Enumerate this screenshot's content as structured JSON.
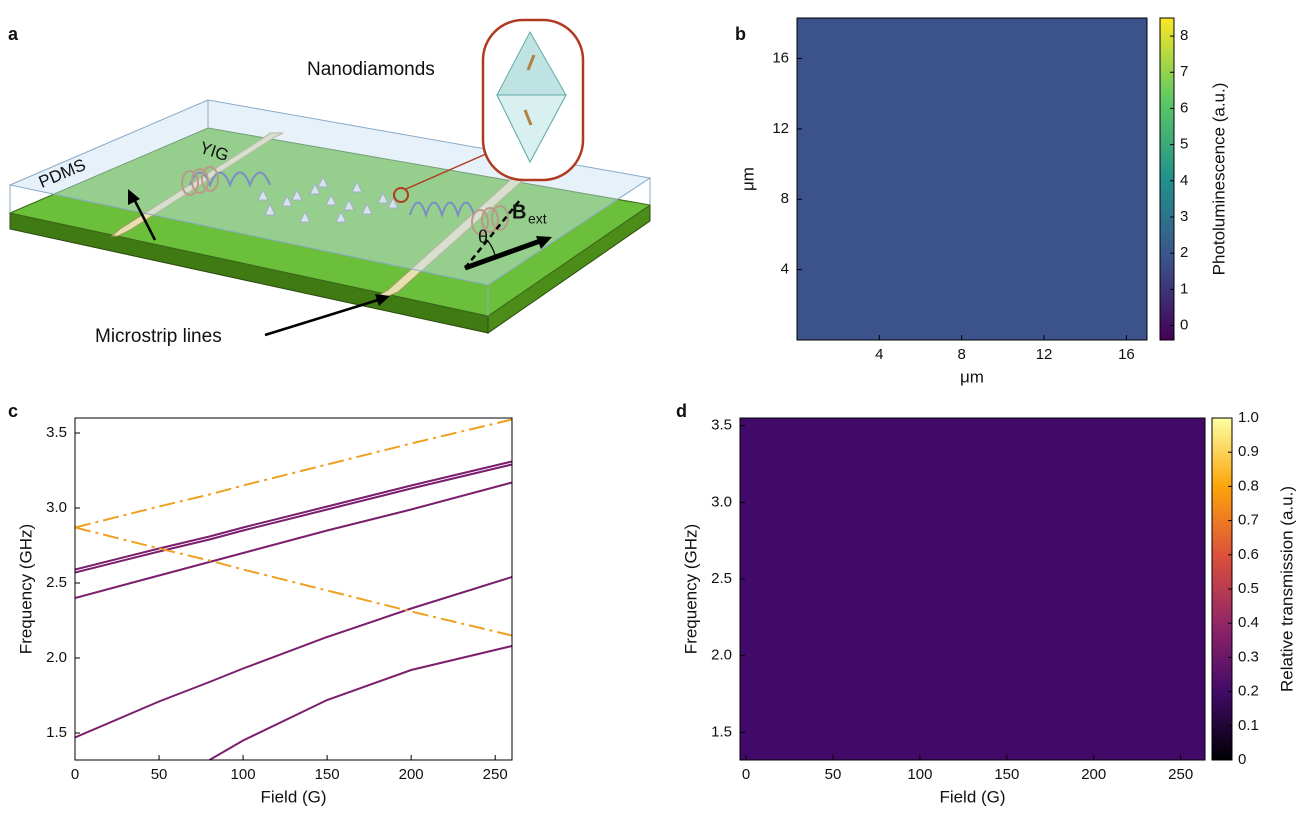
{
  "panel_labels": [
    "a",
    "b",
    "c",
    "d"
  ],
  "diagram": {
    "callout": "Nanodiamonds",
    "cover": "PDMS",
    "film": "YIG",
    "lines": "Microstrip lines",
    "angle": "θ",
    "field": "B",
    "field_sub": "ext"
  },
  "chart_data": [
    {
      "type": "image",
      "xlabel": "μm",
      "ylabel": "μm",
      "xlim": [
        0,
        17
      ],
      "xticks": [
        4,
        8,
        12,
        16
      ],
      "ylim": [
        0,
        18.3
      ],
      "yticks": [
        4,
        8,
        12,
        16
      ],
      "colorbar": {
        "label": "Photoluminescence (a.u.)",
        "colormap": "viridis",
        "clim": [
          -0.4,
          8.5
        ],
        "ticks": [
          0,
          1,
          2,
          3,
          4,
          5,
          6,
          7,
          8
        ]
      }
    },
    {
      "type": "line",
      "xlabel": "Field (G)",
      "ylabel": "Frequency (GHz)",
      "xlim": [
        0,
        260
      ],
      "xticks": [
        0,
        50,
        100,
        150,
        200,
        250
      ],
      "ylim": [
        1.32,
        3.6
      ],
      "yticks": [
        1.5,
        {
          "value": 2,
          "label": "2.0"
        },
        2.5,
        {
          "value": 3,
          "label": "3.0"
        },
        3.5
      ],
      "x": [
        0,
        50,
        80,
        100,
        150,
        200,
        260
      ],
      "series": [
        {
          "color": "#7b1e6e",
          "style": "solid",
          "values": [
            2.59,
            2.73,
            2.81,
            2.87,
            3.01,
            3.15,
            3.31
          ]
        },
        {
          "color": "#7b1e6e",
          "style": "solid",
          "values": [
            2.57,
            2.71,
            2.79,
            2.85,
            2.99,
            3.13,
            3.29
          ]
        },
        {
          "color": "#7b1e6e",
          "style": "solid",
          "values": [
            2.4,
            2.55,
            2.64,
            2.7,
            2.85,
            2.99,
            3.17
          ]
        },
        {
          "color": "#7b1e6e",
          "style": "solid",
          "values": [
            1.47,
            1.71,
            1.84,
            1.93,
            2.14,
            2.33,
            2.54
          ]
        },
        {
          "color": "#7b1e6e",
          "style": "solid",
          "values": [
            null,
            null,
            1.32,
            1.45,
            1.72,
            1.92,
            2.08
          ]
        },
        {
          "color": "#f0a020",
          "style": "dash-dot",
          "values": [
            2.87,
            3.01,
            3.09,
            3.15,
            3.29,
            3.43,
            3.59
          ]
        },
        {
          "color": "#f0a020",
          "style": "dash-dot",
          "values": [
            2.87,
            2.73,
            2.65,
            2.59,
            2.45,
            2.31,
            2.15
          ]
        }
      ]
    },
    {
      "type": "heatmap",
      "xlabel": "Field (G)",
      "ylabel": "Frequency (GHz)",
      "xlim": [
        -3.5,
        264
      ],
      "xticks": [
        0,
        50,
        100,
        150,
        200,
        250
      ],
      "ylim": [
        1.32,
        3.55
      ],
      "yticks": [
        1.5,
        {
          "value": 2,
          "label": "2.0"
        },
        2.5,
        {
          "value": 3,
          "label": "3.0"
        },
        3.5
      ],
      "colorbar": {
        "label": "Relative transmission (a.u.)",
        "colormap": "inferno",
        "clim": [
          0,
          1
        ],
        "ticks": [
          0,
          0.1,
          0.2,
          0.3,
          0.4,
          0.5,
          0.6,
          0.7,
          0.8,
          0.9,
          {
            "value": 1,
            "label": "1.0"
          }
        ]
      }
    }
  ]
}
